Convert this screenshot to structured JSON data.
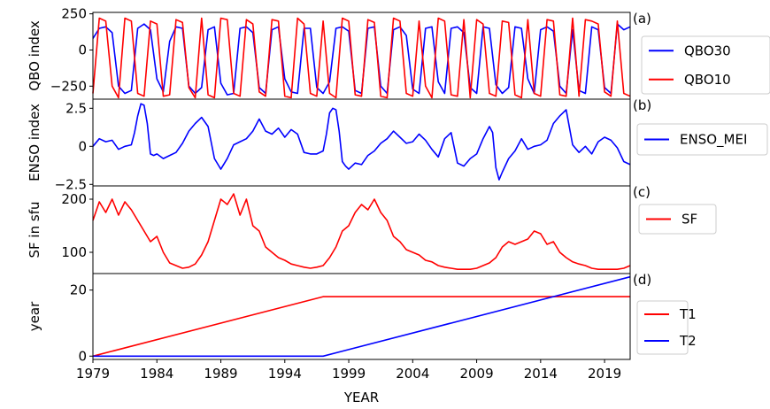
{
  "chart_data": [
    {
      "type": "line",
      "panel_label": "(a)",
      "ylabel": "QBO index",
      "ylim": [
        -340,
        260
      ],
      "yticks": [
        250,
        0,
        -250
      ],
      "legend": "right",
      "series": [
        {
          "name": "QBO30",
          "color": "#0000ff",
          "x": [
            1979.0,
            1979.5,
            1980.0,
            1980.5,
            1981.0,
            1981.5,
            1982.0,
            1982.5,
            1983.0,
            1983.5,
            1984.0,
            1984.5,
            1985.0,
            1985.5,
            1986.0,
            1986.5,
            1987.0,
            1987.5,
            1988.0,
            1988.5,
            1989.0,
            1989.5,
            1990.0,
            1990.5,
            1991.0,
            1991.5,
            1992.0,
            1992.5,
            1993.0,
            1993.5,
            1994.0,
            1994.5,
            1995.0,
            1995.5,
            1996.0,
            1996.5,
            1997.0,
            1997.5,
            1998.0,
            1998.5,
            1999.0,
            1999.5,
            2000.0,
            2000.5,
            2001.0,
            2001.5,
            2002.0,
            2002.5,
            2003.0,
            2003.5,
            2004.0,
            2004.5,
            2005.0,
            2005.5,
            2006.0,
            2006.5,
            2007.0,
            2007.5,
            2008.0,
            2008.5,
            2009.0,
            2009.5,
            2010.0,
            2010.5,
            2011.0,
            2011.5,
            2012.0,
            2012.5,
            2013.0,
            2013.5,
            2014.0,
            2014.5,
            2015.0,
            2015.5,
            2016.0,
            2016.5,
            2017.0,
            2017.5,
            2018.0,
            2018.5,
            2019.0,
            2019.5,
            2020.0,
            2020.5,
            2021.0
          ],
          "y": [
            80,
            150,
            160,
            120,
            -250,
            -300,
            -280,
            150,
            180,
            140,
            -200,
            -290,
            60,
            160,
            150,
            -250,
            -300,
            -260,
            140,
            160,
            -230,
            -310,
            -300,
            150,
            160,
            120,
            -260,
            -300,
            140,
            160,
            -200,
            -290,
            -300,
            150,
            150,
            -260,
            -300,
            -220,
            150,
            160,
            130,
            -280,
            -300,
            150,
            160,
            -250,
            -300,
            140,
            160,
            100,
            -270,
            -300,
            150,
            160,
            -220,
            -300,
            150,
            160,
            120,
            -260,
            -300,
            160,
            150,
            -240,
            -300,
            -260,
            160,
            150,
            -200,
            -300,
            140,
            160,
            130,
            -250,
            -300,
            140,
            -280,
            -300,
            160,
            140,
            -260,
            -300,
            180,
            140,
            160
          ]
        },
        {
          "name": "QBO10",
          "color": "#ff0000",
          "x": [
            1979.0,
            1979.5,
            1980.0,
            1980.5,
            1981.0,
            1981.5,
            1982.0,
            1982.5,
            1983.0,
            1983.5,
            1984.0,
            1984.5,
            1985.0,
            1985.5,
            1986.0,
            1986.5,
            1987.0,
            1987.5,
            1988.0,
            1988.5,
            1989.0,
            1989.5,
            1990.0,
            1990.5,
            1991.0,
            1991.5,
            1992.0,
            1992.5,
            1993.0,
            1993.5,
            1994.0,
            1994.5,
            1995.0,
            1995.5,
            1996.0,
            1996.5,
            1997.0,
            1997.5,
            1998.0,
            1998.5,
            1999.0,
            1999.5,
            2000.0,
            2000.5,
            2001.0,
            2001.5,
            2002.0,
            2002.5,
            2003.0,
            2003.5,
            2004.0,
            2004.5,
            2005.0,
            2005.5,
            2006.0,
            2006.5,
            2007.0,
            2007.5,
            2008.0,
            2008.5,
            2009.0,
            2009.5,
            2010.0,
            2010.5,
            2011.0,
            2011.5,
            2012.0,
            2012.5,
            2013.0,
            2013.5,
            2014.0,
            2014.5,
            2015.0,
            2015.5,
            2016.0,
            2016.5,
            2017.0,
            2017.5,
            2018.0,
            2018.5,
            2019.0,
            2019.5,
            2020.0,
            2020.5,
            2021.0
          ],
          "y": [
            -300,
            220,
            200,
            -250,
            -330,
            220,
            200,
            -300,
            -320,
            200,
            180,
            -320,
            -310,
            210,
            190,
            -260,
            -330,
            220,
            -310,
            -330,
            220,
            210,
            -300,
            -320,
            210,
            180,
            -290,
            -320,
            210,
            200,
            -320,
            -330,
            220,
            180,
            -300,
            -320,
            200,
            -300,
            -330,
            220,
            200,
            -310,
            -320,
            210,
            190,
            -320,
            -330,
            220,
            200,
            -300,
            -320,
            200,
            -250,
            -330,
            220,
            200,
            -310,
            -320,
            210,
            -330,
            210,
            180,
            -300,
            -320,
            200,
            190,
            -310,
            -330,
            210,
            -300,
            -320,
            210,
            200,
            -310,
            -320,
            220,
            -320,
            210,
            200,
            180,
            -290,
            -320,
            200,
            -300,
            -320
          ]
        }
      ]
    },
    {
      "type": "line",
      "panel_label": "(b)",
      "ylabel": "ENSO index",
      "ylim": [
        -2.6,
        3.1
      ],
      "yticks": [
        2.5,
        0.0,
        -2.5
      ],
      "legend": "right",
      "series": [
        {
          "name": "ENSO_MEI",
          "color": "#0000ff",
          "x": [
            1979.0,
            1979.5,
            1980.0,
            1980.5,
            1981.0,
            1981.5,
            1982.0,
            1982.25,
            1982.5,
            1982.75,
            1983.0,
            1983.25,
            1983.5,
            1983.75,
            1984.0,
            1984.5,
            1985.0,
            1985.5,
            1986.0,
            1986.5,
            1987.0,
            1987.5,
            1988.0,
            1988.5,
            1989.0,
            1989.5,
            1990.0,
            1990.5,
            1991.0,
            1991.5,
            1992.0,
            1992.5,
            1993.0,
            1993.5,
            1994.0,
            1994.5,
            1995.0,
            1995.5,
            1996.0,
            1996.5,
            1997.0,
            1997.25,
            1997.5,
            1997.75,
            1998.0,
            1998.25,
            1998.5,
            1998.75,
            1999.0,
            1999.5,
            2000.0,
            2000.5,
            2001.0,
            2001.5,
            2002.0,
            2002.5,
            2003.0,
            2003.5,
            2004.0,
            2004.5,
            2005.0,
            2005.5,
            2006.0,
            2006.5,
            2007.0,
            2007.5,
            2008.0,
            2008.5,
            2009.0,
            2009.5,
            2010.0,
            2010.25,
            2010.5,
            2010.75,
            2011.0,
            2011.5,
            2012.0,
            2012.5,
            2013.0,
            2013.5,
            2014.0,
            2014.5,
            2015.0,
            2015.5,
            2016.0,
            2016.5,
            2017.0,
            2017.5,
            2018.0,
            2018.5,
            2019.0,
            2019.5,
            2020.0,
            2020.5,
            2021.0
          ],
          "y": [
            0.0,
            0.5,
            0.3,
            0.4,
            -0.2,
            0.0,
            0.1,
            0.9,
            2.0,
            2.8,
            2.7,
            1.5,
            -0.5,
            -0.6,
            -0.5,
            -0.8,
            -0.6,
            -0.4,
            0.2,
            1.0,
            1.5,
            1.9,
            1.3,
            -0.8,
            -1.5,
            -0.8,
            0.1,
            0.3,
            0.5,
            1.0,
            1.8,
            1.0,
            0.8,
            1.2,
            0.6,
            1.1,
            0.8,
            -0.4,
            -0.5,
            -0.5,
            -0.3,
            0.8,
            2.2,
            2.5,
            2.4,
            1.0,
            -1.0,
            -1.3,
            -1.5,
            -1.1,
            -1.2,
            -0.6,
            -0.3,
            0.2,
            0.5,
            1.0,
            0.6,
            0.2,
            0.3,
            0.8,
            0.4,
            -0.2,
            -0.7,
            0.5,
            0.9,
            -1.1,
            -1.3,
            -0.8,
            -0.5,
            0.5,
            1.3,
            0.9,
            -1.4,
            -2.2,
            -1.7,
            -0.8,
            -0.3,
            0.5,
            -0.2,
            0.0,
            0.1,
            0.4,
            1.5,
            2.0,
            2.4,
            0.1,
            -0.4,
            0.0,
            -0.5,
            0.3,
            0.6,
            0.4,
            -0.1,
            -1.0,
            -1.2
          ]
        }
      ]
    },
    {
      "type": "line",
      "panel_label": "(c)",
      "ylabel": "SF in sfu",
      "ylim": [
        60,
        225
      ],
      "yticks": [
        200,
        100
      ],
      "legend": "right",
      "series": [
        {
          "name": "SF",
          "color": "#ff0000",
          "x": [
            1979.0,
            1979.5,
            1980.0,
            1980.5,
            1981.0,
            1981.5,
            1982.0,
            1982.5,
            1983.0,
            1983.5,
            1984.0,
            1984.5,
            1985.0,
            1985.5,
            1986.0,
            1986.5,
            1987.0,
            1987.5,
            1988.0,
            1988.5,
            1989.0,
            1989.5,
            1990.0,
            1990.5,
            1991.0,
            1991.5,
            1992.0,
            1992.5,
            1993.0,
            1993.5,
            1994.0,
            1994.5,
            1995.0,
            1995.5,
            1996.0,
            1996.5,
            1997.0,
            1997.5,
            1998.0,
            1998.5,
            1999.0,
            1999.5,
            2000.0,
            2000.5,
            2001.0,
            2001.5,
            2002.0,
            2002.5,
            2003.0,
            2003.5,
            2004.0,
            2004.5,
            2005.0,
            2005.5,
            2006.0,
            2006.5,
            2007.0,
            2007.5,
            2008.0,
            2008.5,
            2009.0,
            2009.5,
            2010.0,
            2010.5,
            2011.0,
            2011.5,
            2012.0,
            2012.5,
            2013.0,
            2013.5,
            2014.0,
            2014.5,
            2015.0,
            2015.5,
            2016.0,
            2016.5,
            2017.0,
            2017.5,
            2018.0,
            2018.5,
            2019.0,
            2019.5,
            2020.0,
            2020.5,
            2021.0
          ],
          "y": [
            160,
            195,
            175,
            200,
            170,
            195,
            180,
            160,
            140,
            120,
            130,
            100,
            80,
            75,
            70,
            72,
            78,
            95,
            120,
            160,
            200,
            190,
            210,
            170,
            200,
            150,
            140,
            110,
            100,
            90,
            85,
            78,
            75,
            72,
            70,
            72,
            75,
            90,
            110,
            140,
            150,
            175,
            190,
            180,
            200,
            175,
            160,
            130,
            120,
            105,
            100,
            95,
            85,
            82,
            75,
            72,
            70,
            68,
            68,
            68,
            70,
            75,
            80,
            90,
            110,
            120,
            115,
            120,
            125,
            140,
            135,
            115,
            120,
            100,
            90,
            82,
            78,
            75,
            70,
            68,
            68,
            68,
            68,
            70,
            75
          ]
        }
      ]
    },
    {
      "type": "line",
      "panel_label": "(d)",
      "ylabel": "year",
      "xlabel": "YEAR",
      "ylim": [
        -1,
        25
      ],
      "yticks": [
        20,
        0
      ],
      "xlim": [
        1979,
        2021
      ],
      "xticks": [
        1979,
        1984,
        1989,
        1994,
        1999,
        2004,
        2009,
        2014,
        2019
      ],
      "legend": "right",
      "series": [
        {
          "name": "T1",
          "color": "#ff0000",
          "x": [
            1979,
            1997,
            2021
          ],
          "y": [
            0,
            18,
            18
          ]
        },
        {
          "name": "T2",
          "color": "#0000ff",
          "x": [
            1979,
            1997,
            2021
          ],
          "y": [
            0,
            0,
            24
          ]
        }
      ]
    }
  ]
}
